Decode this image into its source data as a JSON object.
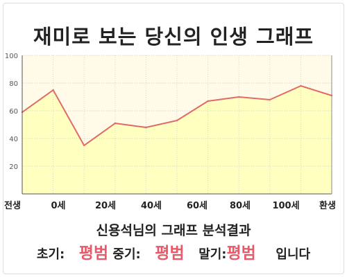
{
  "title": "재미로 보는 당신의 인생 그래프",
  "summary": {
    "heading": "신용석님의 그래프 분석결과",
    "early_label": "초기:",
    "early_value": "평범",
    "middle_label": "중기:",
    "middle_value": "평범",
    "late_label": "말기:",
    "late_value": "평범",
    "ending": "입니다"
  },
  "colors": {
    "line": "#e06a6a",
    "fill": "#ffffc0",
    "plot_bg": "#fffbe8",
    "accent_text": "#e85a6a"
  },
  "chart_data": {
    "type": "area",
    "title": "",
    "xlabel": "",
    "ylabel": "",
    "ylim": [
      0,
      100
    ],
    "yticks": [
      "20",
      "40",
      "60",
      "80",
      "100"
    ],
    "ytick_values": [
      20,
      40,
      60,
      80,
      100
    ],
    "xticks": [
      "전생",
      "0세",
      "20세",
      "40세",
      "60세",
      "80세",
      "100세",
      "환생"
    ],
    "grid": true,
    "legend": "none",
    "series": [
      {
        "points": [
          {
            "x": "전생",
            "y": 59
          },
          {
            "x": "0세",
            "y": 75
          },
          {
            "x": "",
            "y": 35
          },
          {
            "x": "",
            "y": 51
          },
          {
            "x": "",
            "y": 48
          },
          {
            "x": "",
            "y": 53
          },
          {
            "x": "",
            "y": 67
          },
          {
            "x": "",
            "y": 70
          },
          {
            "x": "",
            "y": 68
          },
          {
            "x": "",
            "y": 78
          },
          {
            "x": "환생",
            "y": 71
          }
        ]
      }
    ]
  }
}
